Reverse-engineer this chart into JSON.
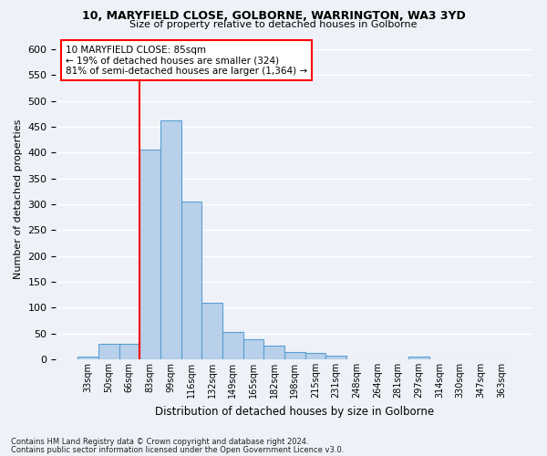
{
  "title1": "10, MARYFIELD CLOSE, GOLBORNE, WARRINGTON, WA3 3YD",
  "title2": "Size of property relative to detached houses in Golborne",
  "xlabel": "Distribution of detached houses by size in Golborne",
  "ylabel": "Number of detached properties",
  "bar_vals": [
    6,
    30,
    30,
    405,
    463,
    305,
    110,
    53,
    39,
    26,
    14,
    12,
    7,
    0,
    0,
    0,
    5,
    0,
    0,
    0,
    0
  ],
  "categories": [
    "33sqm",
    "50sqm",
    "66sqm",
    "83sqm",
    "99sqm",
    "116sqm",
    "132sqm",
    "149sqm",
    "165sqm",
    "182sqm",
    "198sqm",
    "215sqm",
    "231sqm",
    "248sqm",
    "264sqm",
    "281sqm",
    "297sqm",
    "314sqm",
    "330sqm",
    "347sqm",
    "363sqm"
  ],
  "bar_color": "#b8d0ea",
  "bar_edge_color": "#5a9fd4",
  "vline_index": 3,
  "vline_color": "red",
  "annotation_text": "10 MARYFIELD CLOSE: 85sqm\n← 19% of detached houses are smaller (324)\n81% of semi-detached houses are larger (1,364) →",
  "annotation_box_color": "white",
  "annotation_box_edge_color": "red",
  "ylim_max": 620,
  "yticks": [
    0,
    50,
    100,
    150,
    200,
    250,
    300,
    350,
    400,
    450,
    500,
    550,
    600
  ],
  "footer1": "Contains HM Land Registry data © Crown copyright and database right 2024.",
  "footer2": "Contains public sector information licensed under the Open Government Licence v3.0.",
  "bg_color": "#eef2f8",
  "grid_color": "white"
}
